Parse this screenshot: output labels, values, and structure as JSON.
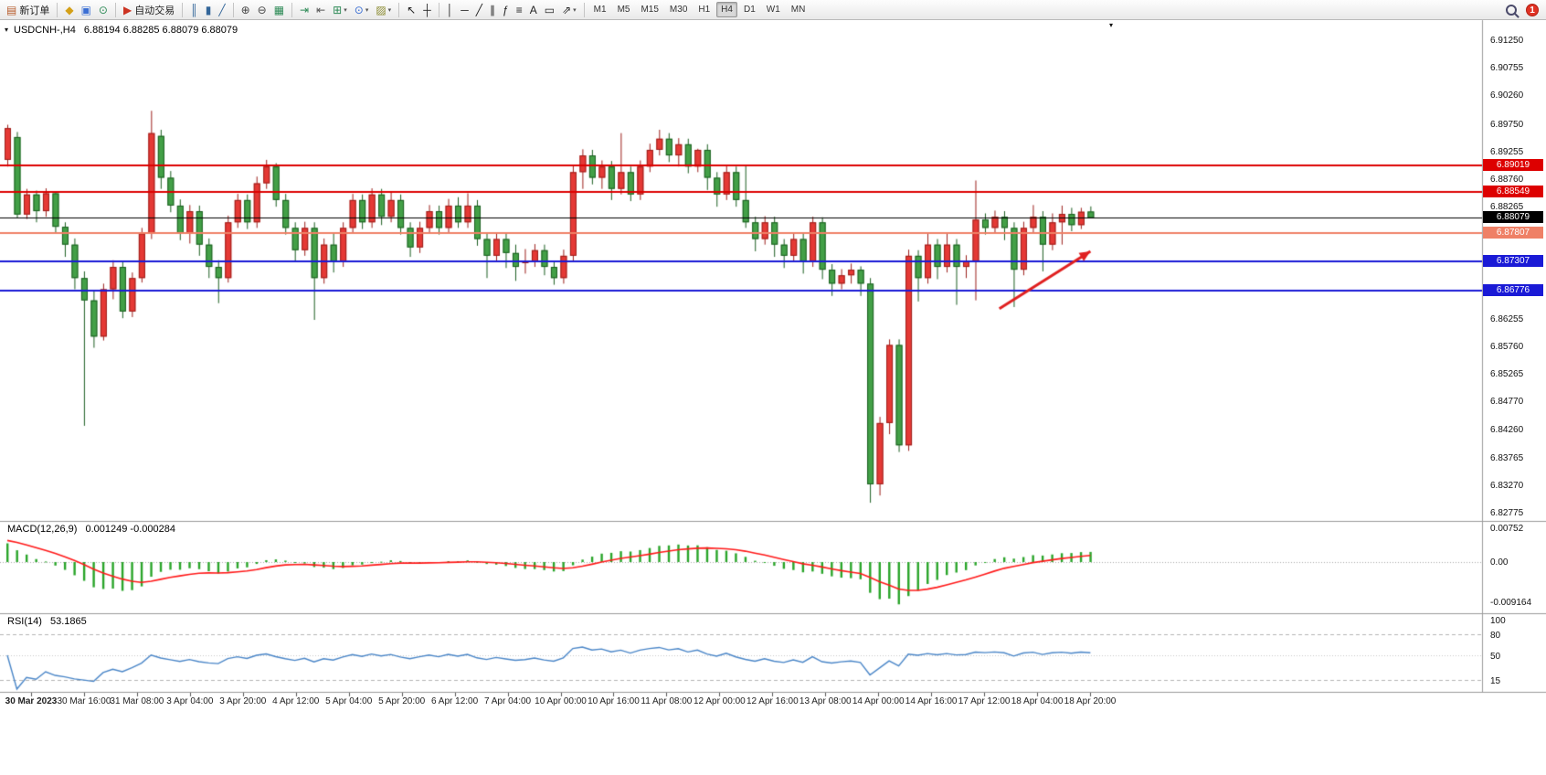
{
  "toolbar": {
    "groups": [
      {
        "items": [
          {
            "name": "new-order-button",
            "glyph": "▤",
            "glyph_color": "#b85c2c",
            "label": "新订单"
          }
        ]
      },
      {
        "items": [
          {
            "name": "metaeditor-button",
            "glyph": "◆",
            "glyph_color": "#d4a017"
          },
          {
            "name": "strategy-tester-button",
            "glyph": "▣",
            "glyph_color": "#3b6fd4"
          },
          {
            "name": "history-center-button",
            "glyph": "⊙",
            "glyph_color": "#2e8b57"
          }
        ]
      },
      {
        "items": [
          {
            "name": "autotrading-button",
            "glyph": "▶",
            "glyph_color": "#cc3322",
            "label": "自动交易"
          }
        ]
      },
      {
        "items": [
          {
            "name": "bar-chart-button",
            "glyph": "║",
            "glyph_color": "#336699"
          },
          {
            "name": "candlestick-chart-button",
            "glyph": "▮",
            "glyph_color": "#336699"
          },
          {
            "name": "line-chart-button",
            "glyph": "╱",
            "glyph_color": "#336699"
          }
        ]
      },
      {
        "items": [
          {
            "name": "zoom-in-button",
            "glyph": "⊕",
            "glyph_color": "#444444"
          },
          {
            "name": "zoom-out-button",
            "glyph": "⊖",
            "glyph_color": "#444444"
          },
          {
            "name": "tile-windows-button",
            "glyph": "▦",
            "glyph_color": "#2e8b57"
          }
        ]
      },
      {
        "items": [
          {
            "name": "auto-scroll-button",
            "glyph": "⇥",
            "glyph_color": "#2e8b57"
          },
          {
            "name": "chart-shift-button",
            "glyph": "⇤",
            "glyph_color": "#555555"
          },
          {
            "name": "indicators-button",
            "glyph": "⊞",
            "glyph_color": "#2e8b57",
            "caret": true
          },
          {
            "name": "periods-button",
            "glyph": "⊙",
            "glyph_color": "#3b6fd4",
            "caret": true
          },
          {
            "name": "templates-button",
            "glyph": "▨",
            "glyph_color": "#8a8a2e",
            "caret": true
          }
        ]
      },
      {
        "items": [
          {
            "name": "cursor-button",
            "glyph": "↖",
            "glyph_color": "#222222"
          },
          {
            "name": "crosshair-button",
            "glyph": "┼",
            "glyph_color": "#222222"
          }
        ]
      },
      {
        "items": [
          {
            "name": "vertical-line-button",
            "glyph": "│",
            "glyph_color": "#222222"
          },
          {
            "name": "horizontal-line-button",
            "glyph": "─",
            "glyph_color": "#222222"
          },
          {
            "name": "trendline-button",
            "glyph": "╱",
            "glyph_color": "#222222"
          },
          {
            "name": "equidistant-channel-button",
            "glyph": "∥",
            "glyph_color": "#222222"
          },
          {
            "name": "fibonacci-button",
            "glyph": "ƒ",
            "glyph_color": "#222222"
          },
          {
            "name": "shapes-button",
            "glyph": "≡",
            "glyph_color": "#222222"
          },
          {
            "name": "text-button",
            "glyph": "A",
            "glyph_color": "#222222"
          },
          {
            "name": "text-label-button",
            "glyph": "▭",
            "glyph_color": "#222222"
          },
          {
            "name": "arrows-button",
            "glyph": "⇗",
            "glyph_color": "#222222",
            "caret": true
          }
        ]
      }
    ],
    "timeframes": [
      {
        "label": "M1"
      },
      {
        "label": "M5"
      },
      {
        "label": "M15"
      },
      {
        "label": "M30"
      },
      {
        "label": "H1"
      },
      {
        "label": "H4",
        "active": true
      },
      {
        "label": "D1"
      },
      {
        "label": "W1"
      },
      {
        "label": "MN"
      }
    ],
    "right": {
      "notification_count": "1"
    }
  },
  "chart": {
    "title": "USDCNH-,H4",
    "ohlc": "6.88194 6.88285 6.88079 6.88079",
    "icons": {
      "collapse": "▾",
      "scroll_anchor": "▾"
    },
    "price_axis_labels": [
      {
        "label": "6.91250",
        "price": 6.9125
      },
      {
        "label": "6.90755",
        "price": 6.90755
      },
      {
        "label": "6.90260",
        "price": 6.9026
      },
      {
        "label": "6.89750",
        "price": 6.8975
      },
      {
        "label": "6.89255",
        "price": 6.89255
      },
      {
        "label": "6.88760",
        "price": 6.8876
      },
      {
        "label": "6.88265",
        "price": 6.88265
      },
      {
        "label": "6.86255",
        "price": 6.86255
      },
      {
        "label": "6.85760",
        "price": 6.8576
      },
      {
        "label": "6.85265",
        "price": 6.85265
      },
      {
        "label": "6.84770",
        "price": 6.8477
      },
      {
        "label": "6.84260",
        "price": 6.8426
      },
      {
        "label": "6.83765",
        "price": 6.83765
      },
      {
        "label": "6.83270",
        "price": 6.8327
      },
      {
        "label": "6.82775",
        "price": 6.82775
      }
    ],
    "hlines": [
      {
        "label": "6.89019",
        "price": 6.89019,
        "color": "#dd0000",
        "width": 2
      },
      {
        "label": "6.88549",
        "price": 6.88549,
        "color": "#dd0000",
        "width": 2
      },
      {
        "label": "6.87807",
        "price": 6.87807,
        "color": "#ef8066",
        "width": 2
      },
      {
        "label": "6.87307",
        "price": 6.87307,
        "color": "#1a1ad6",
        "width": 2
      },
      {
        "label": "6.86776",
        "price": 6.86776,
        "color": "#1a1ad6",
        "width": 2
      }
    ],
    "current_price": {
      "label": "6.88079",
      "price": 6.88079,
      "color": "#000000"
    },
    "time_labels": [
      "30 Mar 2023",
      "30 Mar 16:00",
      "31 Mar 08:00",
      "3 Apr 04:00",
      "3 Apr 20:00",
      "4 Apr 12:00",
      "5 Apr 04:00",
      "5 Apr 20:00",
      "6 Apr 12:00",
      "7 Apr 04:00",
      "10 Apr 00:00",
      "10 Apr 16:00",
      "11 Apr 08:00",
      "12 Apr 00:00",
      "12 Apr 16:00",
      "13 Apr 08:00",
      "14 Apr 00:00",
      "14 Apr 16:00",
      "17 Apr 12:00",
      "18 Apr 04:00",
      "18 Apr 20:00"
    ]
  },
  "indicators": {
    "macd": {
      "label": "MACD(12,26,9)",
      "values": "0.001249 -0.000284",
      "scale_labels": [
        {
          "label": "0.00752",
          "value": 0.00752
        },
        {
          "label": "0.00",
          "value": 0
        },
        {
          "label": "-0.009164",
          "value": -0.009164
        }
      ],
      "histogram_color": "#2aa52a",
      "signal_color": "#ff1a1a"
    },
    "rsi": {
      "label": "RSI(14)",
      "value": "53.1865",
      "scale_labels": [
        {
          "label": "100",
          "value": 100
        },
        {
          "label": "80",
          "value": 80
        },
        {
          "label": "50",
          "value": 50
        },
        {
          "label": "15",
          "value": 15
        }
      ],
      "levels": [
        80,
        50,
        15
      ],
      "line_color": "#4a86c8"
    }
  },
  "chart_data": {
    "type": "candlestick",
    "symbol": "USDCNH-",
    "period": "H4",
    "title": "USDCNH-,H4",
    "ohlc_display": {
      "open": "6.88194",
      "high": "6.88285",
      "low": "6.88079",
      "close": "6.88079"
    },
    "y_axis_visible_range": [
      6.82775,
      6.9125
    ],
    "up_fill": "#e53935",
    "up_border": "#9c1f1b",
    "down_fill": "#43a047",
    "down_border": "#1b5e20",
    "horizontal_levels": [
      6.89019,
      6.88549,
      6.88079,
      6.87807,
      6.87307,
      6.86776
    ],
    "annotation_arrow": {
      "color": "#e02020",
      "from": {
        "index": 103.5,
        "price": 6.8645
      },
      "to": {
        "index": 113,
        "price": 6.8748
      }
    },
    "candles": [
      [
        6.8912,
        6.8975,
        6.89,
        6.8969
      ],
      [
        6.8953,
        6.8962,
        6.8808,
        6.8814
      ],
      [
        6.8814,
        6.886,
        6.8806,
        6.885
      ],
      [
        6.885,
        6.8857,
        6.88,
        6.882
      ],
      [
        6.882,
        6.8861,
        6.881,
        6.8852
      ],
      [
        6.8852,
        6.8856,
        6.878,
        6.8792
      ],
      [
        6.8792,
        6.88,
        6.8738,
        6.876
      ],
      [
        6.876,
        6.8771,
        6.868,
        6.87
      ],
      [
        6.87,
        6.8712,
        6.8435,
        6.866
      ],
      [
        6.866,
        6.8678,
        6.8575,
        6.8595
      ],
      [
        6.8595,
        6.869,
        6.8588,
        6.868
      ],
      [
        6.868,
        6.8732,
        6.8662,
        6.872
      ],
      [
        6.872,
        6.8729,
        6.8628,
        6.864
      ],
      [
        6.864,
        6.871,
        6.863,
        6.87
      ],
      [
        6.87,
        6.879,
        6.8692,
        6.878
      ],
      [
        6.878,
        6.9,
        6.877,
        6.896
      ],
      [
        6.8955,
        6.8966,
        6.886,
        6.888
      ],
      [
        6.888,
        6.8892,
        6.8818,
        6.883
      ],
      [
        6.883,
        6.8841,
        6.8768,
        6.878
      ],
      [
        6.878,
        6.8831,
        6.8762,
        6.882
      ],
      [
        6.882,
        6.883,
        6.874,
        6.876
      ],
      [
        6.876,
        6.8771,
        6.87,
        6.872
      ],
      [
        6.872,
        6.8732,
        6.8655,
        6.87
      ],
      [
        6.87,
        6.8812,
        6.8692,
        6.88
      ],
      [
        6.88,
        6.8851,
        6.879,
        6.884
      ],
      [
        6.884,
        6.885,
        6.8788,
        6.88
      ],
      [
        6.88,
        6.8882,
        6.879,
        6.887
      ],
      [
        6.887,
        6.8912,
        6.886,
        6.89
      ],
      [
        6.89,
        6.8906,
        6.8828,
        6.884
      ],
      [
        6.884,
        6.8851,
        6.8778,
        6.879
      ],
      [
        6.879,
        6.88,
        6.873,
        6.875
      ],
      [
        6.875,
        6.8801,
        6.874,
        6.879
      ],
      [
        6.879,
        6.88,
        6.8625,
        6.87
      ],
      [
        6.87,
        6.8771,
        6.869,
        6.876
      ],
      [
        6.876,
        6.878,
        6.871,
        6.873
      ],
      [
        6.873,
        6.88,
        6.872,
        6.879
      ],
      [
        6.879,
        6.8851,
        6.878,
        6.884
      ],
      [
        6.884,
        6.885,
        6.8788,
        6.88
      ],
      [
        6.88,
        6.8861,
        6.879,
        6.885
      ],
      [
        6.885,
        6.886,
        6.8795,
        6.881
      ],
      [
        6.881,
        6.8856,
        6.88,
        6.884
      ],
      [
        6.884,
        6.885,
        6.8778,
        6.879
      ],
      [
        6.879,
        6.88,
        6.8738,
        6.8755
      ],
      [
        6.8755,
        6.8801,
        6.8745,
        6.879
      ],
      [
        6.879,
        6.8831,
        6.878,
        6.882
      ],
      [
        6.882,
        6.883,
        6.8778,
        6.879
      ],
      [
        6.879,
        6.8842,
        6.878,
        6.883
      ],
      [
        6.883,
        6.8845,
        6.879,
        6.88
      ],
      [
        6.88,
        6.8852,
        6.879,
        6.883
      ],
      [
        6.883,
        6.884,
        6.8758,
        6.877
      ],
      [
        6.877,
        6.878,
        6.87,
        6.874
      ],
      [
        6.874,
        6.8781,
        6.873,
        6.877
      ],
      [
        6.877,
        6.878,
        6.8718,
        6.8745
      ],
      [
        6.8745,
        6.876,
        6.8695,
        6.872
      ],
      [
        6.8728,
        6.8752,
        6.8708,
        6.873
      ],
      [
        6.873,
        6.8761,
        6.872,
        6.875
      ],
      [
        6.875,
        6.876,
        6.8705,
        6.872
      ],
      [
        6.872,
        6.8731,
        6.8688,
        6.87
      ],
      [
        6.87,
        6.8751,
        6.869,
        6.874
      ],
      [
        6.874,
        6.8901,
        6.873,
        6.889
      ],
      [
        6.889,
        6.8931,
        6.886,
        6.892
      ],
      [
        6.892,
        6.893,
        6.8868,
        6.888
      ],
      [
        6.888,
        6.8911,
        6.886,
        6.89
      ],
      [
        6.89,
        6.891,
        6.884,
        6.886
      ],
      [
        6.886,
        6.896,
        6.885,
        6.889
      ],
      [
        6.889,
        6.89,
        6.8838,
        6.885
      ],
      [
        6.885,
        6.8911,
        6.884,
        6.89
      ],
      [
        6.89,
        6.8941,
        6.889,
        6.893
      ],
      [
        6.893,
        6.8966,
        6.892,
        6.895
      ],
      [
        6.895,
        6.896,
        6.8908,
        6.892
      ],
      [
        6.892,
        6.8951,
        6.89,
        6.894
      ],
      [
        6.894,
        6.895,
        6.8888,
        6.89
      ],
      [
        6.89,
        6.8932,
        6.889,
        6.893
      ],
      [
        6.893,
        6.894,
        6.8858,
        6.888
      ],
      [
        6.888,
        6.889,
        6.8828,
        6.885
      ],
      [
        6.885,
        6.8901,
        6.884,
        6.889
      ],
      [
        6.889,
        6.89,
        6.8828,
        6.884
      ],
      [
        6.884,
        6.8902,
        6.879,
        6.88
      ],
      [
        6.88,
        6.881,
        6.8748,
        6.877
      ],
      [
        6.877,
        6.8811,
        6.876,
        6.88
      ],
      [
        6.88,
        6.881,
        6.8738,
        6.876
      ],
      [
        6.876,
        6.877,
        6.8718,
        6.874
      ],
      [
        6.874,
        6.8781,
        6.873,
        6.877
      ],
      [
        6.877,
        6.878,
        6.8708,
        6.873
      ],
      [
        6.873,
        6.881,
        6.872,
        6.88
      ],
      [
        6.88,
        6.8809,
        6.8698,
        6.8715
      ],
      [
        6.8715,
        6.8725,
        6.8668,
        6.869
      ],
      [
        6.869,
        6.8716,
        6.868,
        6.8705
      ],
      [
        6.8705,
        6.8726,
        6.869,
        6.8715
      ],
      [
        6.8715,
        6.8721,
        6.8668,
        6.869
      ],
      [
        6.869,
        6.87,
        6.8297,
        6.833
      ],
      [
        6.833,
        6.8451,
        6.831,
        6.844
      ],
      [
        6.844,
        6.859,
        6.842,
        6.858
      ],
      [
        6.858,
        6.859,
        6.8388,
        6.84
      ],
      [
        6.84,
        6.8751,
        6.839,
        6.874
      ],
      [
        6.874,
        6.875,
        6.8658,
        6.87
      ],
      [
        6.87,
        6.8781,
        6.869,
        6.876
      ],
      [
        6.876,
        6.877,
        6.8698,
        6.872
      ],
      [
        6.872,
        6.8781,
        6.871,
        6.876
      ],
      [
        6.876,
        6.877,
        6.8652,
        6.872
      ],
      [
        6.872,
        6.8741,
        6.87,
        6.873
      ],
      [
        6.873,
        6.8875,
        6.866,
        6.8805
      ],
      [
        6.8805,
        6.8816,
        6.8778,
        6.879
      ],
      [
        6.879,
        6.8821,
        6.878,
        6.881
      ],
      [
        6.881,
        6.882,
        6.8768,
        6.879
      ],
      [
        6.879,
        6.88,
        6.8648,
        6.8715
      ],
      [
        6.8715,
        6.8801,
        6.8705,
        6.879
      ],
      [
        6.879,
        6.8831,
        6.878,
        6.881
      ],
      [
        6.881,
        6.882,
        6.8712,
        6.876
      ],
      [
        6.876,
        6.8816,
        6.875,
        6.88
      ],
      [
        6.88,
        6.883,
        6.876,
        6.8815
      ],
      [
        6.8815,
        6.8826,
        6.8784,
        6.8795
      ],
      [
        6.8795,
        6.8826,
        6.8788,
        6.8819
      ],
      [
        6.88194,
        6.88285,
        6.88079,
        6.88079
      ]
    ],
    "indicators": [
      {
        "name": "MACD",
        "params": [
          12,
          26,
          9
        ],
        "last_values": [
          0.001249,
          -0.000284
        ],
        "scale": [
          0.00752,
          -0.009164
        ]
      },
      {
        "name": "RSI",
        "params": [
          14
        ],
        "last_value": 53.1865,
        "levels": [
          80,
          50,
          15
        ]
      }
    ]
  }
}
